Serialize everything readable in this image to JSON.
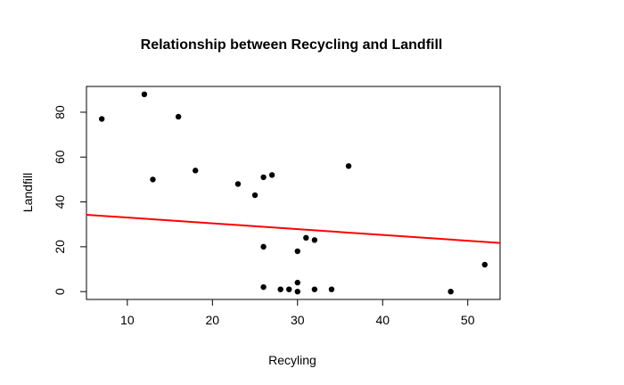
{
  "chart_data": {
    "type": "scatter",
    "title": "Relationship between Recycling and Landfill",
    "xlabel": "Recyling",
    "ylabel": "Landfill",
    "xlim": [
      5.2,
      53.8
    ],
    "ylim": [
      -3.5,
      91.5
    ],
    "x_ticks": [
      10,
      20,
      30,
      40,
      50
    ],
    "y_ticks": [
      0,
      20,
      40,
      60,
      80
    ],
    "points": [
      {
        "x": 7,
        "y": 77
      },
      {
        "x": 12,
        "y": 88
      },
      {
        "x": 13,
        "y": 50
      },
      {
        "x": 16,
        "y": 78
      },
      {
        "x": 18,
        "y": 54
      },
      {
        "x": 23,
        "y": 48
      },
      {
        "x": 25,
        "y": 43
      },
      {
        "x": 26,
        "y": 51
      },
      {
        "x": 26,
        "y": 20
      },
      {
        "x": 26,
        "y": 2
      },
      {
        "x": 27,
        "y": 52
      },
      {
        "x": 28,
        "y": 1
      },
      {
        "x": 29,
        "y": 1
      },
      {
        "x": 30,
        "y": 4
      },
      {
        "x": 30,
        "y": 18
      },
      {
        "x": 30,
        "y": 0
      },
      {
        "x": 31,
        "y": 24
      },
      {
        "x": 32,
        "y": 23
      },
      {
        "x": 32,
        "y": 1
      },
      {
        "x": 34,
        "y": 1
      },
      {
        "x": 36,
        "y": 56
      },
      {
        "x": 48,
        "y": 0
      },
      {
        "x": 52,
        "y": 12
      }
    ],
    "regression_line": {
      "intercept": 35.62,
      "slope": -0.2586,
      "color": "#ff0000"
    },
    "point_color": "#000000",
    "grid": false
  }
}
